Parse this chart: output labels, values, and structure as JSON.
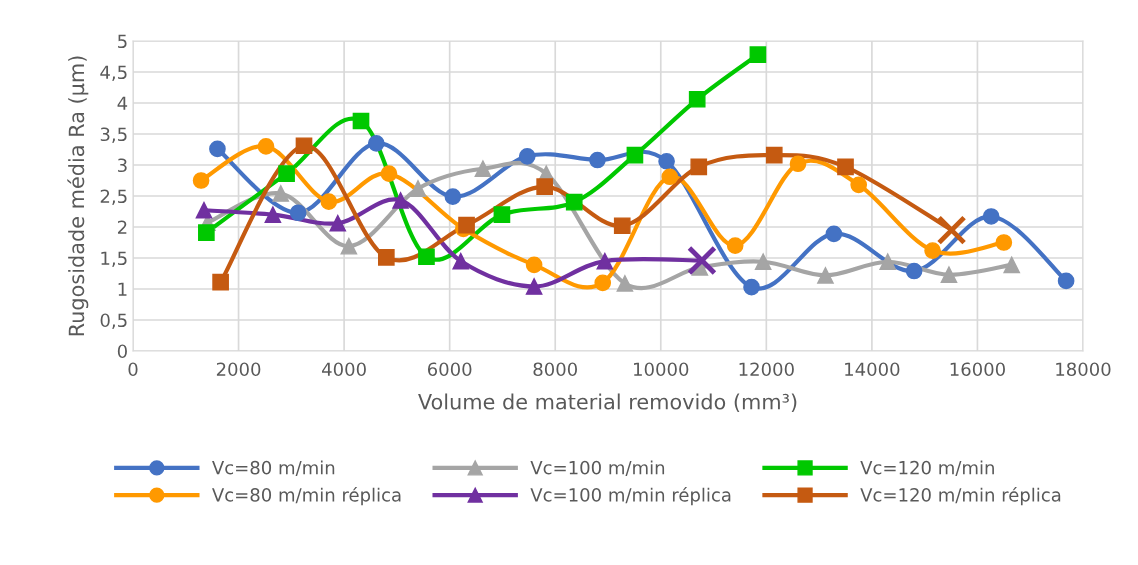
{
  "chart_data": {
    "type": "line",
    "xlabel": "Volume de material removido (mm³)",
    "ylabel": "Rugosidade média Ra (µm)",
    "xlim": [
      0,
      18000
    ],
    "xticks": [
      0,
      2000,
      4000,
      6000,
      8000,
      10000,
      12000,
      14000,
      16000,
      18000
    ],
    "ylim": [
      0,
      5
    ],
    "yticks": [
      0,
      {
        "value": 0.5,
        "label": "0,5"
      },
      1,
      {
        "value": 1.5,
        "label": "1,5"
      },
      2,
      {
        "value": 2.5,
        "label": "2,5"
      },
      3,
      {
        "value": 3.5,
        "label": "3,5"
      },
      4,
      {
        "value": 4.5,
        "label": "4,5"
      },
      5
    ],
    "grid": true,
    "legend": "bottom",
    "line_style": "solid",
    "series": [
      {
        "name": "Vc=80 m/min",
        "color": "#4472c4",
        "marker": "circle",
        "x": [
          1600,
          3130,
          4610,
          6060,
          7470,
          8800,
          10110,
          11720,
          13280,
          14800,
          16260,
          17680
        ],
        "values": [
          3.26,
          2.23,
          3.35,
          2.49,
          3.14,
          3.08,
          3.06,
          1.03,
          1.89,
          1.29,
          2.17,
          1.13
        ]
      },
      {
        "name": "Vc=100 m/min",
        "color": "#a5a5a5",
        "marker": "triangle",
        "x": [
          1410,
          2800,
          4090,
          5400,
          6630,
          7830,
          9320,
          10740,
          11940,
          13120,
          14300,
          15460,
          16650
        ],
        "values": [
          2.07,
          2.54,
          1.69,
          2.62,
          2.94,
          2.86,
          1.09,
          1.35,
          1.44,
          1.22,
          1.44,
          1.23,
          1.39
        ]
      },
      {
        "name": "Vc=120 m/min",
        "color": "#00c800",
        "marker": "square",
        "x": [
          1390,
          2910,
          4320,
          5560,
          6990,
          8360,
          9510,
          10690,
          11840
        ],
        "values": [
          1.91,
          2.86,
          3.71,
          1.52,
          2.2,
          2.4,
          3.16,
          4.06,
          4.78
        ]
      },
      {
        "name": "Vc=80 m/min réplica",
        "color": "#ff9900",
        "marker": "circle",
        "x": [
          1290,
          2520,
          3710,
          4850,
          6260,
          7600,
          8900,
          10170,
          11410,
          12600,
          13750,
          15150,
          16500
        ],
        "values": [
          2.75,
          3.3,
          2.41,
          2.86,
          1.97,
          1.39,
          1.1,
          2.81,
          1.7,
          3.02,
          2.68,
          1.62,
          1.75
        ]
      },
      {
        "name": "Vc=100 m/min réplica",
        "color": "#7030a0",
        "marker": [
          "triangle",
          "triangle",
          "triangle",
          "triangle",
          "triangle",
          "triangle",
          "triangle",
          "cross"
        ],
        "x": [
          1345,
          2650,
          3880,
          5070,
          6210,
          7600,
          8940,
          10780
        ],
        "values": [
          2.27,
          2.2,
          2.06,
          2.43,
          1.45,
          1.04,
          1.45,
          1.46
        ]
      },
      {
        "name": "Vc=120 m/min réplica",
        "color": "#c55a11",
        "marker": [
          "square",
          "square",
          "square",
          "square",
          "square",
          "square",
          "square",
          "square",
          "square",
          "cross"
        ],
        "x": [
          1660,
          3240,
          4800,
          6320,
          7800,
          9270,
          10720,
          12150,
          13500,
          15510
        ],
        "values": [
          1.11,
          3.31,
          1.51,
          2.03,
          2.65,
          2.02,
          2.97,
          3.16,
          2.97,
          1.95
        ]
      }
    ]
  }
}
